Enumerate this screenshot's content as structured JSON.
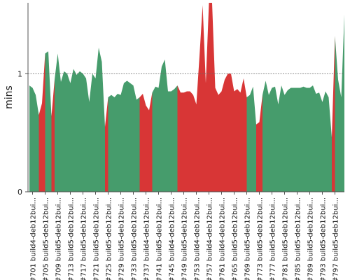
{
  "chart_data": {
    "type": "area",
    "ylabel": "mins",
    "ylim": [
      0,
      1.6
    ],
    "yticks": [
      0,
      1
    ],
    "reference_line": 1,
    "grid": false,
    "colors": {
      "pass": "#469c6c",
      "fail": "#d83636",
      "axis": "#555555",
      "refline": "#666666"
    },
    "xtick_labels": [
      "#701 build4-deb12bui...",
      "#705 build5-deb12bui...",
      "#709 build5-deb12bui...",
      "#713 build5-deb12bui...",
      "#717 build5-deb12bui...",
      "#721 build5-deb12bui...",
      "#725 build5-deb12bui...",
      "#729 build5-deb12bui...",
      "#733 build5-deb12bui...",
      "#737 build4-deb12bui...",
      "#741 build5-deb12bui...",
      "#745 build4-deb12bui...",
      "#749 build5-deb12bui...",
      "#753 build4-deb12bui...",
      "#757 build4-deb12bui...",
      "#761 build4-deb12bui...",
      "#765 build5-deb12bui...",
      "#769 build5-deb12bui...",
      "#773 build5-deb12bui...",
      "#777 build5-deb12bui...",
      "#781 build5-deb12bui...",
      "#785 build5-deb12bui...",
      "#789 build5-deb12bui...",
      "#793 build5-deb12bui...",
      "#797 build5-deb12bui..."
    ],
    "builds_start": 700,
    "values": [
      0.9,
      0.88,
      0.82,
      0.65,
      0.75,
      1.17,
      1.19,
      0.64,
      0.95,
      1.17,
      0.93,
      1.02,
      1.0,
      0.92,
      1.04,
      0.99,
      1.02,
      1.0,
      0.96,
      0.76,
      1.0,
      0.96,
      1.22,
      1.1,
      0.55,
      0.8,
      0.82,
      0.8,
      0.83,
      0.82,
      0.92,
      0.94,
      0.92,
      0.9,
      0.78,
      0.8,
      0.83,
      0.73,
      0.69,
      0.84,
      0.89,
      0.88,
      1.06,
      1.12,
      0.85,
      0.85,
      0.87,
      0.9,
      0.84,
      0.84,
      0.85,
      0.85,
      0.82,
      0.74,
      1.15,
      1.58,
      0.92,
      1.6,
      1.6,
      0.88,
      0.82,
      0.85,
      0.95,
      1.0,
      1.0,
      0.85,
      0.87,
      0.84,
      0.96,
      0.8,
      0.82,
      0.89,
      0.57,
      0.59,
      0.82,
      0.94,
      0.82,
      0.88,
      0.89,
      0.74,
      0.9,
      0.82,
      0.86,
      0.88,
      0.88,
      0.88,
      0.88,
      0.89,
      0.88,
      0.88,
      0.9,
      0.83,
      0.84,
      0.76,
      0.85,
      0.8,
      0.46,
      1.32,
      0.95,
      0.8,
      1.5
    ],
    "status": [
      "pass",
      "pass",
      "pass",
      "fail",
      "fail",
      "pass",
      "pass",
      "fail",
      "pass",
      "pass",
      "pass",
      "pass",
      "pass",
      "pass",
      "pass",
      "pass",
      "pass",
      "pass",
      "pass",
      "pass",
      "pass",
      "pass",
      "pass",
      "pass",
      "fail",
      "pass",
      "pass",
      "pass",
      "pass",
      "pass",
      "pass",
      "pass",
      "pass",
      "pass",
      "pass",
      "fail",
      "fail",
      "fail",
      "fail",
      "pass",
      "pass",
      "pass",
      "pass",
      "pass",
      "pass",
      "pass",
      "pass",
      "fail",
      "fail",
      "fail",
      "fail",
      "fail",
      "fail",
      "fail",
      "fail",
      "fail",
      "fail",
      "fail",
      "fail",
      "fail",
      "fail",
      "fail",
      "fail",
      "fail",
      "fail",
      "fail",
      "fail",
      "fail",
      "fail",
      "pass",
      "pass",
      "pass",
      "fail",
      "fail",
      "pass",
      "pass",
      "pass",
      "pass",
      "pass",
      "pass",
      "pass",
      "pass",
      "pass",
      "pass",
      "pass",
      "pass",
      "pass",
      "pass",
      "pass",
      "pass",
      "pass",
      "pass",
      "pass",
      "pass",
      "pass",
      "pass",
      "fail",
      "pass",
      "pass",
      "pass",
      "pass"
    ]
  }
}
